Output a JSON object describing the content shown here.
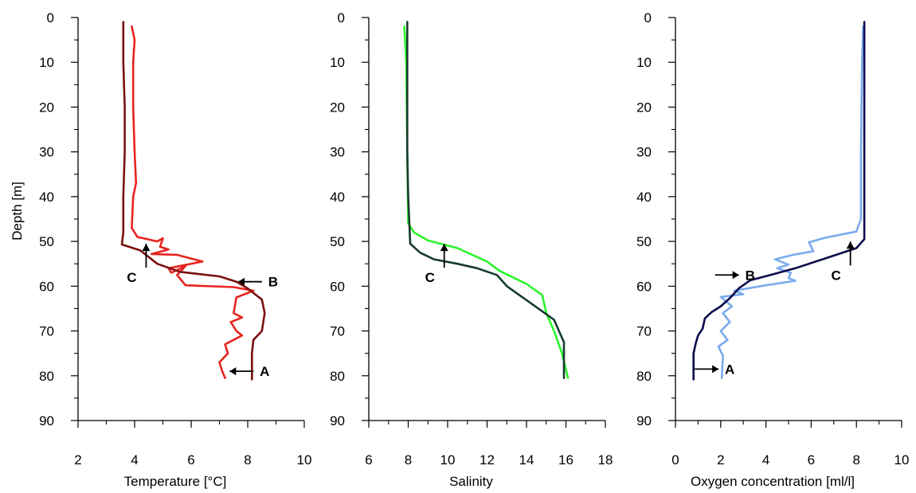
{
  "chart_data": [
    {
      "type": "line",
      "xlabel": "Temperature [°C]",
      "ylabel": "Depth [m]",
      "xlim": [
        2,
        10
      ],
      "ylim": [
        90,
        0
      ],
      "xticks": [
        2,
        4,
        6,
        8,
        10
      ],
      "yticks": [
        0,
        10,
        20,
        30,
        40,
        50,
        60,
        70,
        80,
        90
      ],
      "series": [
        {
          "color": "#e8231f",
          "points": [
            [
              3.9,
              2
            ],
            [
              4.0,
              5
            ],
            [
              3.95,
              10
            ],
            [
              3.95,
              20
            ],
            [
              4.0,
              30
            ],
            [
              4.05,
              37
            ],
            [
              3.95,
              40
            ],
            [
              3.9,
              47
            ],
            [
              4.1,
              49
            ],
            [
              4.8,
              50
            ],
            [
              5.0,
              49.3
            ],
            [
              4.9,
              51.2
            ],
            [
              5.2,
              51.8
            ],
            [
              4.6,
              52.8
            ],
            [
              5.5,
              53.0
            ],
            [
              6.4,
              54.5
            ],
            [
              5.2,
              56.0
            ],
            [
              5.3,
              57.0
            ],
            [
              5.8,
              55.5
            ],
            [
              5.5,
              57.5
            ],
            [
              5.8,
              59.8
            ],
            [
              7.5,
              60.2
            ],
            [
              8.2,
              61.0
            ],
            [
              7.6,
              62.5
            ],
            [
              7.5,
              66
            ],
            [
              7.8,
              67
            ],
            [
              7.4,
              68
            ],
            [
              7.6,
              70
            ],
            [
              7.8,
              71
            ],
            [
              7.2,
              73
            ],
            [
              7.3,
              75
            ],
            [
              7.0,
              77
            ],
            [
              7.1,
              79
            ],
            [
              7.2,
              80.5
            ]
          ]
        },
        {
          "color": "#7b1010",
          "points": [
            [
              3.6,
              1
            ],
            [
              3.6,
              10
            ],
            [
              3.65,
              20
            ],
            [
              3.65,
              30
            ],
            [
              3.6,
              40
            ],
            [
              3.6,
              48
            ],
            [
              3.55,
              50.7
            ],
            [
              4.2,
              52
            ],
            [
              4.8,
              55
            ],
            [
              5.6,
              56.8
            ],
            [
              7.0,
              57.8
            ],
            [
              7.6,
              59
            ],
            [
              8.0,
              60.5
            ],
            [
              8.5,
              63
            ],
            [
              8.6,
              66
            ],
            [
              8.5,
              70
            ],
            [
              8.2,
              72
            ],
            [
              8.15,
              75
            ],
            [
              8.15,
              80.8
            ]
          ]
        }
      ],
      "annotations": [
        {
          "text": "A",
          "x": 8.6,
          "y": 79
        },
        {
          "text": "B",
          "x": 8.9,
          "y": 59
        },
        {
          "text": "C",
          "x": 3.9,
          "y": 58
        }
      ]
    },
    {
      "type": "line",
      "xlabel": "Salinity",
      "ylabel": "",
      "xlim": [
        6,
        18
      ],
      "ylim": [
        90,
        0
      ],
      "xticks": [
        6,
        8,
        10,
        12,
        14,
        16,
        18
      ],
      "yticks": [
        0,
        10,
        20,
        30,
        40,
        50,
        60,
        70,
        80,
        90
      ],
      "series": [
        {
          "color": "#2af52a",
          "points": [
            [
              7.8,
              2
            ],
            [
              7.9,
              10
            ],
            [
              7.95,
              30
            ],
            [
              8.0,
              46
            ],
            [
              8.3,
              48
            ],
            [
              9.0,
              49.8
            ],
            [
              10.5,
              51.5
            ],
            [
              12.0,
              54.5
            ],
            [
              12.6,
              56.5
            ],
            [
              14.0,
              59.5
            ],
            [
              14.8,
              62
            ],
            [
              15.0,
              66
            ],
            [
              15.4,
              70
            ],
            [
              15.8,
              75
            ],
            [
              16.1,
              80.5
            ]
          ]
        },
        {
          "color": "#173a2f",
          "points": [
            [
              7.95,
              1
            ],
            [
              7.95,
              10
            ],
            [
              7.95,
              30
            ],
            [
              8.0,
              40
            ],
            [
              8.1,
              50.5
            ],
            [
              8.6,
              52.5
            ],
            [
              9.3,
              54
            ],
            [
              10.5,
              55
            ],
            [
              11.5,
              56
            ],
            [
              12.5,
              57.5
            ],
            [
              13.0,
              60
            ],
            [
              13.9,
              62.8
            ],
            [
              14.6,
              65
            ],
            [
              15.4,
              67.5
            ],
            [
              15.9,
              72.5
            ],
            [
              15.9,
              80.5
            ]
          ]
        }
      ],
      "annotations": [
        {
          "text": "C",
          "x": 9.1,
          "y": 58
        }
      ]
    },
    {
      "type": "line",
      "xlabel": "Oxygen concentration [ml/l]",
      "ylabel": "",
      "xlim": [
        0,
        10
      ],
      "ylim": [
        90,
        0
      ],
      "xticks": [
        0,
        2,
        4,
        6,
        8,
        10
      ],
      "yticks": [
        0,
        10,
        20,
        30,
        40,
        50,
        60,
        70,
        80,
        90
      ],
      "series": [
        {
          "color": "#7aabef",
          "points": [
            [
              8.3,
              2
            ],
            [
              8.25,
              10
            ],
            [
              8.2,
              30
            ],
            [
              8.2,
              45
            ],
            [
              8.0,
              47.8
            ],
            [
              6.6,
              49.2
            ],
            [
              5.9,
              50.2
            ],
            [
              6.1,
              52.2
            ],
            [
              5.2,
              53.0
            ],
            [
              4.4,
              54.0
            ],
            [
              5.0,
              55.2
            ],
            [
              4.5,
              56.0
            ],
            [
              5.1,
              57.0
            ],
            [
              5.0,
              58.2
            ],
            [
              5.3,
              58.8
            ],
            [
              4.0,
              59.8
            ],
            [
              2.6,
              61.0
            ],
            [
              3.0,
              61.8
            ],
            [
              2.0,
              62.4
            ],
            [
              2.5,
              64.5
            ],
            [
              2.1,
              66.0
            ],
            [
              2.4,
              68.0
            ],
            [
              2.0,
              70.0
            ],
            [
              2.3,
              72.0
            ],
            [
              1.9,
              73.5
            ],
            [
              2.1,
              75.5
            ],
            [
              2.05,
              80.5
            ]
          ]
        },
        {
          "color": "#0b0b4d",
          "points": [
            [
              8.35,
              1
            ],
            [
              8.35,
              10
            ],
            [
              8.35,
              30
            ],
            [
              8.35,
              49.5
            ],
            [
              8.0,
              51.5
            ],
            [
              6.5,
              54.0
            ],
            [
              5.3,
              56.0
            ],
            [
              4.2,
              57.5
            ],
            [
              3.3,
              58.7
            ],
            [
              2.8,
              60.5
            ],
            [
              2.4,
              62.7
            ],
            [
              2.0,
              64.5
            ],
            [
              1.6,
              65.8
            ],
            [
              1.3,
              67.2
            ],
            [
              1.2,
              69.5
            ],
            [
              1.0,
              71.0
            ],
            [
              0.9,
              72.7
            ],
            [
              0.8,
              75.0
            ],
            [
              0.8,
              80.8
            ]
          ]
        }
      ],
      "annotations": [
        {
          "text": "A",
          "x": 2.4,
          "y": 78.5
        },
        {
          "text": "B",
          "x": 3.3,
          "y": 57.5
        },
        {
          "text": "C",
          "x": 7.1,
          "y": 57.5
        }
      ]
    }
  ]
}
